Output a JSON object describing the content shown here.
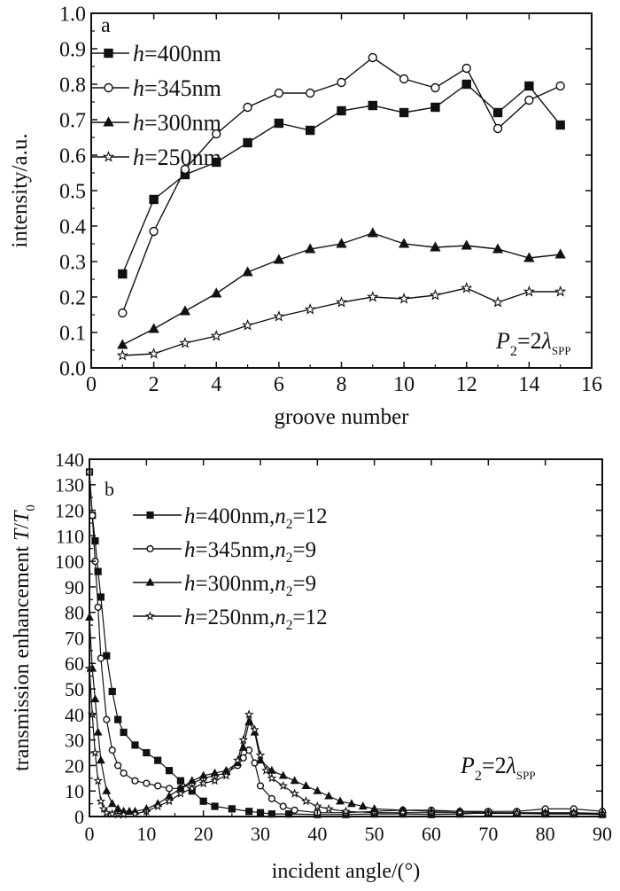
{
  "colors": {
    "ink": "#111111",
    "background": "#ffffff"
  },
  "chart_data": [
    {
      "id": "a",
      "type": "line",
      "panel_label": "a",
      "xlabel": "groove number",
      "ylabel": "intensity/a.u.",
      "xlim": [
        0,
        16
      ],
      "ylim": [
        0.0,
        1.0
      ],
      "xticks": [
        0,
        2,
        4,
        6,
        8,
        10,
        12,
        14,
        16
      ],
      "yticks": [
        0.0,
        0.1,
        0.2,
        0.3,
        0.4,
        0.5,
        0.6,
        0.7,
        0.8,
        0.9,
        1.0
      ],
      "ytick_format": "%.1f",
      "legend_position": "top-left",
      "annotation": {
        "main": "P",
        "sub1": "2",
        "eq": "=2",
        "lambda": "λ",
        "sub2": "SPP"
      },
      "series": [
        {
          "name_var": "h",
          "name_rest": "=400nm",
          "marker": "square-filled",
          "x": [
            1,
            2,
            3,
            4,
            5,
            6,
            7,
            8,
            9,
            10,
            11,
            12,
            13,
            14,
            15
          ],
          "y": [
            0.265,
            0.475,
            0.545,
            0.58,
            0.635,
            0.69,
            0.67,
            0.725,
            0.74,
            0.72,
            0.735,
            0.8,
            0.72,
            0.795,
            0.685
          ]
        },
        {
          "name_var": "h",
          "name_rest": "=345nm",
          "marker": "circle-open",
          "x": [
            1,
            2,
            3,
            4,
            5,
            6,
            7,
            8,
            9,
            10,
            11,
            12,
            13,
            14,
            15
          ],
          "y": [
            0.155,
            0.385,
            0.56,
            0.66,
            0.735,
            0.775,
            0.775,
            0.805,
            0.875,
            0.815,
            0.79,
            0.845,
            0.675,
            0.755,
            0.795
          ]
        },
        {
          "name_var": "h",
          "name_rest": "=300nm",
          "marker": "triangle-filled",
          "x": [
            1,
            2,
            3,
            4,
            5,
            6,
            7,
            8,
            9,
            10,
            11,
            12,
            13,
            14,
            15
          ],
          "y": [
            0.065,
            0.11,
            0.16,
            0.21,
            0.27,
            0.305,
            0.335,
            0.35,
            0.38,
            0.35,
            0.34,
            0.345,
            0.335,
            0.31,
            0.32
          ]
        },
        {
          "name_var": "h",
          "name_rest": "=250nm",
          "marker": "star-open",
          "x": [
            1,
            2,
            3,
            4,
            5,
            6,
            7,
            8,
            9,
            10,
            11,
            12,
            13,
            14,
            15
          ],
          "y": [
            0.035,
            0.04,
            0.07,
            0.09,
            0.12,
            0.145,
            0.165,
            0.185,
            0.2,
            0.195,
            0.205,
            0.225,
            0.185,
            0.215,
            0.215
          ]
        }
      ]
    },
    {
      "id": "b",
      "type": "line",
      "panel_label": "b",
      "xlabel": "incident angle/(°)",
      "ylabel_main": "transmission enhancement ",
      "ylabel_T": "T",
      "ylabel_slash": "/",
      "ylabel_T0": "T",
      "ylabel_T0_sub": "0",
      "xlim": [
        0,
        90
      ],
      "ylim": [
        0,
        140
      ],
      "xticks": [
        0,
        10,
        20,
        30,
        40,
        50,
        60,
        70,
        80,
        90
      ],
      "yticks": [
        0,
        10,
        20,
        30,
        40,
        50,
        60,
        70,
        80,
        90,
        100,
        110,
        120,
        130,
        140
      ],
      "ytick_format": "%d",
      "legend_position": "top-left",
      "annotation": {
        "main": "P",
        "sub1": "2",
        "eq": "=2",
        "lambda": "λ",
        "sub2": "SPP"
      },
      "series": [
        {
          "name_var": "h",
          "name_rest": "=400nm,",
          "name_n": "n",
          "name_nsub": "2",
          "name_tail": "=12",
          "marker": "square-filled",
          "x": [
            0,
            0.5,
            1,
            1.5,
            2,
            3,
            4,
            5,
            6,
            8,
            10,
            12,
            14,
            16,
            18,
            20,
            22,
            25,
            28,
            30,
            32,
            35,
            40,
            45,
            50,
            55,
            60,
            65,
            70,
            75,
            80,
            85,
            90
          ],
          "y": [
            135,
            118,
            108,
            96,
            86,
            63,
            49,
            38,
            33,
            28,
            25,
            22,
            18,
            14,
            10,
            6,
            4,
            3,
            2,
            1.5,
            1,
            1,
            0.8,
            0.8,
            1,
            1,
            0.8,
            1,
            1.5,
            1.2,
            1,
            1,
            0.8
          ]
        },
        {
          "name_var": "h",
          "name_rest": "=345nm,",
          "name_n": "n",
          "name_nsub": "2",
          "name_tail": "=9",
          "marker": "circle-open",
          "x": [
            0,
            0.5,
            1,
            1.5,
            2,
            3,
            4,
            5,
            6,
            8,
            10,
            12,
            14,
            16,
            18,
            20,
            22,
            24,
            26,
            27,
            28,
            29,
            30,
            32,
            34,
            36,
            40,
            45,
            50,
            55,
            60,
            65,
            70,
            75,
            80,
            85,
            90
          ],
          "y": [
            135,
            118,
            100,
            82,
            62,
            38,
            26,
            20,
            17,
            14,
            13,
            12,
            11,
            11,
            13,
            15,
            16,
            17,
            20,
            23,
            26,
            21,
            12,
            7,
            4,
            2.5,
            1.5,
            1.5,
            2,
            2.5,
            2.5,
            2,
            2,
            2,
            3,
            3,
            2
          ]
        },
        {
          "name_var": "h",
          "name_rest": "=300nm,",
          "name_n": "n",
          "name_nsub": "2",
          "name_tail": "=9",
          "marker": "triangle-filled",
          "x": [
            0,
            0.5,
            1,
            1.5,
            2,
            3,
            4,
            5,
            6,
            7,
            8,
            10,
            12,
            14,
            16,
            18,
            20,
            22,
            24,
            26,
            27,
            28,
            29,
            30,
            32,
            34,
            36,
            38,
            40,
            42,
            44,
            46,
            48,
            50,
            55,
            60,
            65,
            70,
            75,
            80,
            85,
            90
          ],
          "y": [
            78,
            58,
            46,
            33,
            22,
            10,
            5,
            3,
            2,
            2,
            2,
            3,
            5,
            8,
            11,
            14,
            16,
            17,
            18,
            21,
            27,
            37,
            33,
            22,
            18,
            16,
            14,
            12,
            10,
            8,
            6,
            5,
            4,
            3,
            2.5,
            2,
            2,
            1.5,
            1.5,
            1.5,
            1.5,
            1.2
          ]
        },
        {
          "name_var": "h",
          "name_rest": "=250nm,",
          "name_n": "n",
          "name_nsub": "2",
          "name_tail": "=12",
          "marker": "star-open",
          "x": [
            0,
            0.5,
            1,
            1.5,
            2,
            2.5,
            3,
            4,
            5,
            6,
            8,
            10,
            12,
            14,
            16,
            18,
            20,
            22,
            24,
            26,
            27,
            28,
            29,
            30,
            31,
            32,
            34,
            36,
            38,
            40,
            42,
            45,
            50,
            55,
            60,
            65,
            70,
            75,
            80,
            85,
            90
          ],
          "y": [
            58,
            40,
            25,
            14,
            6,
            3,
            1.5,
            1,
            0.8,
            0.8,
            1,
            2,
            4,
            6,
            9,
            11,
            13,
            14,
            16,
            22,
            30,
            40,
            34,
            24,
            18,
            15,
            12,
            9,
            6,
            4,
            3,
            2,
            1.5,
            1.5,
            1.5,
            1.5,
            1.2,
            1.2,
            1.2,
            1.2,
            1
          ]
        }
      ]
    }
  ]
}
